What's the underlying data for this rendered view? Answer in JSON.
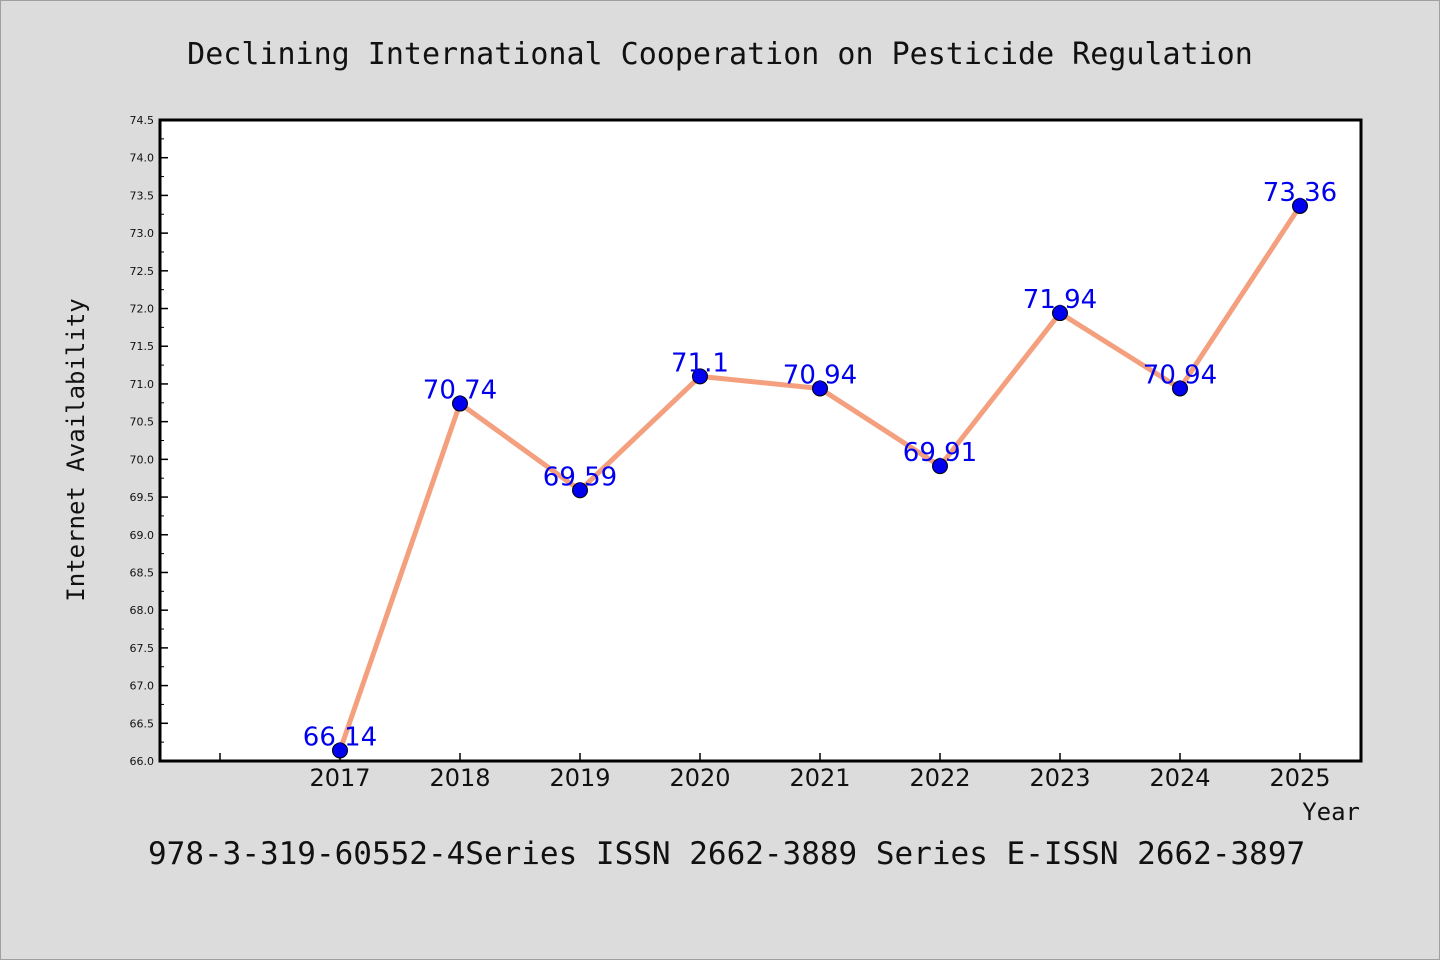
{
  "chart_data": {
    "type": "line",
    "title": "Declining International Cooperation on Pesticide Regulation",
    "xlabel": "Year",
    "ylabel": "Internet Availability",
    "x": [
      "2017",
      "2018",
      "2019",
      "2020",
      "2021",
      "2022",
      "2023",
      "2024",
      "2025"
    ],
    "series": [
      {
        "values": [
          66.14,
          70.74,
          69.59,
          71.1,
          70.94,
          69.91,
          71.94,
          70.94,
          73.36
        ],
        "data_labels": [
          "66.14",
          "70.74",
          "69.59",
          "71.1",
          "70.94",
          "69.91",
          "71.94",
          "70.94",
          "73.36"
        ]
      }
    ],
    "ylim": [
      66.0,
      74.5
    ],
    "yticks": [
      "66.0",
      "66.5",
      "67.0",
      "67.5",
      "68.0",
      "68.5",
      "69.0",
      "69.5",
      "70.0",
      "70.5",
      "71.0",
      "71.5",
      "72.0",
      "72.5",
      "73.0",
      "73.5",
      "74.0",
      "74.5"
    ],
    "grid": false,
    "legend": "none",
    "colors": {
      "line": "#f4a07f",
      "marker": "#0000ee",
      "marker_edge": "#000000",
      "data_label": "#0000ee",
      "plot_background": "#ffffff",
      "figure_background": "#dcdcdc"
    }
  },
  "footer": "978-3-319-60552-4Series ISSN 2662-3889 Series E-ISSN 2662-3897"
}
